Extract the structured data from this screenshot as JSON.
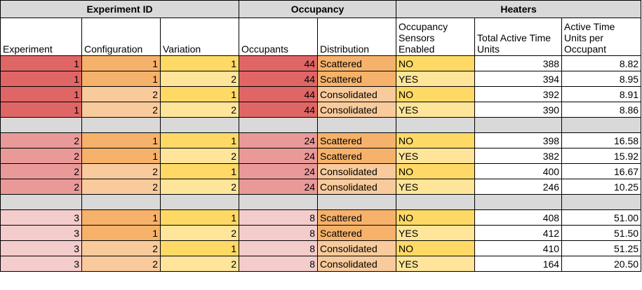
{
  "groups": [
    {
      "label": "Experiment ID",
      "span": 3
    },
    {
      "label": "Occupancy",
      "span": 2
    },
    {
      "label": "Heaters",
      "span": 3
    }
  ],
  "columns": [
    {
      "key": "experiment",
      "label": "Experiment",
      "align": "right"
    },
    {
      "key": "configuration",
      "label": "Configuration",
      "align": "right"
    },
    {
      "key": "variation",
      "label": "Variation",
      "align": "right"
    },
    {
      "key": "occupants",
      "label": "Occupants",
      "align": "right"
    },
    {
      "key": "distribution",
      "label": "Distribution",
      "align": "left"
    },
    {
      "key": "sensors",
      "label": "Occupancy Sensors Enabled",
      "align": "left"
    },
    {
      "key": "total_time",
      "label": "Total Active Time Units",
      "align": "right"
    },
    {
      "key": "time_per_occupant",
      "label": "Active Time Units per Occupant",
      "align": "right"
    }
  ],
  "colors": {
    "separator": "#d9d9d9",
    "header_group": "#d9d9d9",
    "exp1": "#e06666",
    "exp2": "#ea9999",
    "exp3": "#f4cccc",
    "config1": "#f6b26b",
    "config2": "#f9cb9c",
    "variation1": "#ffd966",
    "variation2": "#ffe599",
    "scattered": "#f6b26b",
    "consolidated": "#f9cb9c",
    "sensor_no": "#ffd966",
    "sensor_yes": "#ffe599",
    "white": "#ffffff"
  },
  "rows": [
    {
      "experiment": "1",
      "configuration": "1",
      "variation": "1",
      "occupants": "44",
      "distribution": "Scattered",
      "sensors": "NO",
      "total_time": "388",
      "time_per_occupant": "8.82"
    },
    {
      "experiment": "1",
      "configuration": "1",
      "variation": "2",
      "occupants": "44",
      "distribution": "Scattered",
      "sensors": "YES",
      "total_time": "394",
      "time_per_occupant": "8.95"
    },
    {
      "experiment": "1",
      "configuration": "2",
      "variation": "1",
      "occupants": "44",
      "distribution": "Consolidated",
      "sensors": "NO",
      "total_time": "392",
      "time_per_occupant": "8.91"
    },
    {
      "experiment": "1",
      "configuration": "2",
      "variation": "2",
      "occupants": "44",
      "distribution": "Consolidated",
      "sensors": "YES",
      "total_time": "390",
      "time_per_occupant": "8.86"
    },
    {
      "separator": true
    },
    {
      "experiment": "2",
      "configuration": "1",
      "variation": "1",
      "occupants": "24",
      "distribution": "Scattered",
      "sensors": "NO",
      "total_time": "398",
      "time_per_occupant": "16.58"
    },
    {
      "experiment": "2",
      "configuration": "1",
      "variation": "2",
      "occupants": "24",
      "distribution": "Scattered",
      "sensors": "YES",
      "total_time": "382",
      "time_per_occupant": "15.92"
    },
    {
      "experiment": "2",
      "configuration": "2",
      "variation": "1",
      "occupants": "24",
      "distribution": "Consolidated",
      "sensors": "NO",
      "total_time": "400",
      "time_per_occupant": "16.67"
    },
    {
      "experiment": "2",
      "configuration": "2",
      "variation": "2",
      "occupants": "24",
      "distribution": "Consolidated",
      "sensors": "YES",
      "total_time": "246",
      "time_per_occupant": "10.25"
    },
    {
      "separator": true
    },
    {
      "experiment": "3",
      "configuration": "1",
      "variation": "1",
      "occupants": "8",
      "distribution": "Scattered",
      "sensors": "NO",
      "total_time": "408",
      "time_per_occupant": "51.00"
    },
    {
      "experiment": "3",
      "configuration": "1",
      "variation": "2",
      "occupants": "8",
      "distribution": "Scattered",
      "sensors": "YES",
      "total_time": "412",
      "time_per_occupant": "51.50"
    },
    {
      "experiment": "3",
      "configuration": "2",
      "variation": "1",
      "occupants": "8",
      "distribution": "Consolidated",
      "sensors": "NO",
      "total_time": "410",
      "time_per_occupant": "51.25"
    },
    {
      "experiment": "3",
      "configuration": "2",
      "variation": "2",
      "occupants": "8",
      "distribution": "Consolidated",
      "sensors": "YES",
      "total_time": "164",
      "time_per_occupant": "20.50"
    }
  ]
}
